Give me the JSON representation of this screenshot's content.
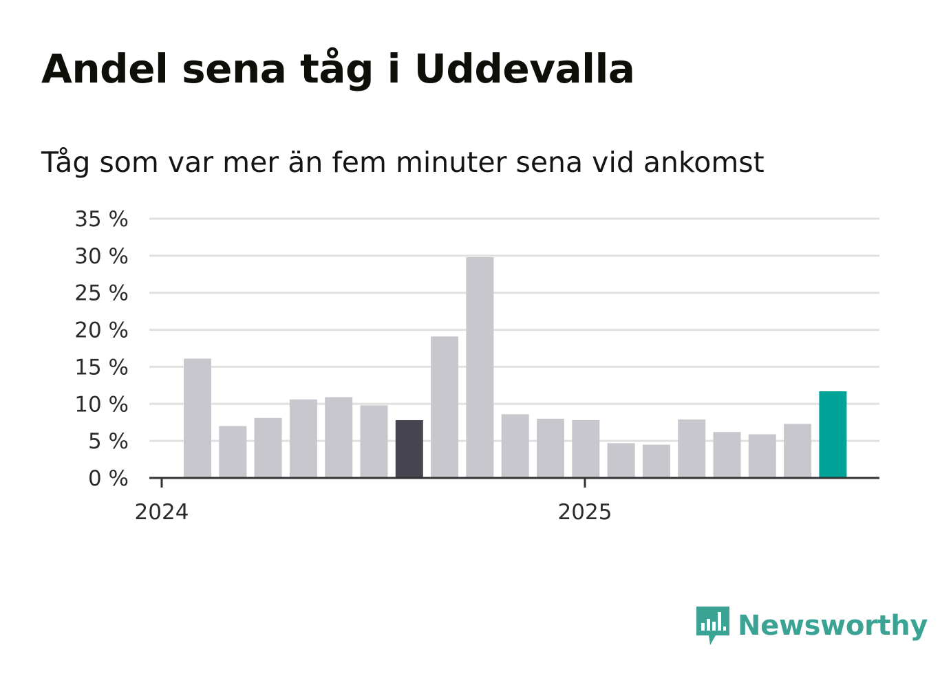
{
  "title": "Andel sena tåg i Uddevalla",
  "subtitle": "Tåg som var mer än fem minuter sena vid ankomst",
  "brand": {
    "name": "Newsworthy",
    "color": "#3aa394"
  },
  "colors": {
    "default_bar": "#c8c7cd",
    "highlight_bar": "#46444f",
    "latest_bar": "#00a398",
    "grid": "#e0e0e0",
    "axis": "#333333"
  },
  "chart_data": {
    "type": "bar",
    "title": "Andel sena tåg i Uddevalla",
    "subtitle": "Tåg som var mer än fem minuter sena vid ankomst",
    "x_tick_labels": [
      "2024",
      "2025"
    ],
    "x_tick_label_positions": [
      0,
      12
    ],
    "y_ticks": [
      0,
      5,
      10,
      15,
      20,
      25,
      30,
      35
    ],
    "y_tick_labels": [
      "0 %",
      "5 %",
      "10 %",
      "15 %",
      "20 %",
      "25 %",
      "30 %",
      "35 %"
    ],
    "ylim": [
      0,
      35
    ],
    "grid": true,
    "values": [
      16.1,
      7.0,
      8.1,
      10.6,
      10.9,
      9.8,
      7.8,
      19.1,
      29.8,
      8.6,
      8.0,
      7.8,
      4.7,
      4.5,
      7.9,
      6.2,
      5.9,
      7.3,
      11.7
    ],
    "bar_colors": [
      "default",
      "default",
      "default",
      "default",
      "default",
      "default",
      "highlight",
      "default",
      "default",
      "default",
      "default",
      "default",
      "default",
      "default",
      "default",
      "default",
      "default",
      "default",
      "latest"
    ]
  }
}
